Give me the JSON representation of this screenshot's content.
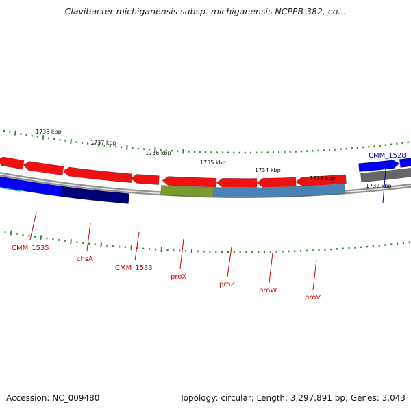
{
  "title": "Clavibacter michiganensis subsp. michiganensis NCPPB 382, co...",
  "footer": {
    "accession": "Accession: NC_009480",
    "summary": "Topology: circular; Length: 3,297,891 bp; Genes: 3,043"
  },
  "colors": {
    "forward_gene": "#ee1111",
    "backbone": "#909090",
    "tick_green": "#2e8b2e",
    "label_red": "#cc0000",
    "label_blue": "#0000aa",
    "cyan": "#00e0ff",
    "blue": "#0000ee",
    "navy": "#000077",
    "olive": "#7a9a30",
    "steel": "#4a82b4",
    "gray": "#666666"
  },
  "ruler": {
    "labels": [
      "1738 kbp",
      "1737 kbp",
      "1736 kbp",
      "1735 kbp",
      "1734 kbp",
      "1733 kbp",
      "1732 kbp"
    ]
  },
  "genes": [
    {
      "label": "CMM_1535",
      "label_color": "label_red"
    },
    {
      "label": "chsA",
      "label_color": "label_red"
    },
    {
      "label": "CMM_1533",
      "label_color": "label_red"
    },
    {
      "label": "proX",
      "label_color": "label_red"
    },
    {
      "label": "proZ",
      "label_color": "label_red"
    },
    {
      "label": "proW",
      "label_color": "label_red"
    },
    {
      "label": "proV",
      "label_color": "label_red"
    },
    {
      "label": "CMM_1528",
      "label_color": "label_blue"
    }
  ]
}
